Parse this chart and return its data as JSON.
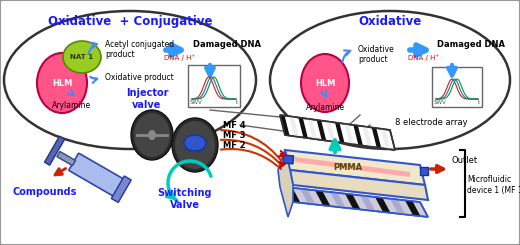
{
  "title_left": "Oxidative  + Conjugative",
  "title_right": "Oxidative",
  "title_color": "#1a1aff",
  "hlm_color": "#ff5588",
  "nat1_color": "#99cc22",
  "arrow_blue": "#4488ff",
  "arrow_blue_fill": "#3399ff",
  "red_arrow": "#cc2200",
  "teal_arrow": "#00ccbb",
  "pmma_color": "#f0e8c8",
  "pmma_edge": "#3355cc",
  "dark_circle": "#404040",
  "dark_circle2": "#555555",
  "blue_part": "#3355cc",
  "mf_line": "#cc3300",
  "mf_line2": "#cc3300",
  "swv_colors": [
    "#cc2200",
    "#3366cc",
    "#009933"
  ],
  "label_injector": "Injector\nvalve",
  "label_switching": "Switching\nValve",
  "label_compounds": "Compounds",
  "label_mf": [
    "MF 4",
    "MF 3",
    "MF 2"
  ],
  "label_8e": "8 electrode array",
  "label_outlet": "Outlet",
  "label_pmma": "PMMA",
  "label_mf1": "Microfluidic\ndevice 1 (MF 1)"
}
